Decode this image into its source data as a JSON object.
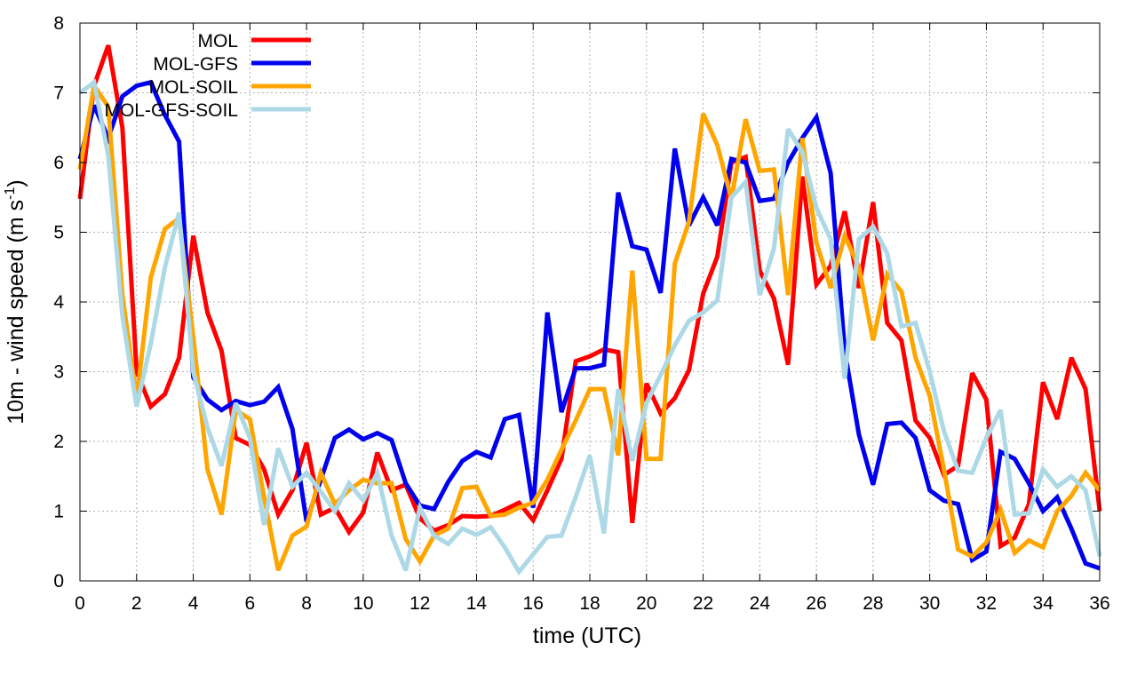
{
  "chart_data": {
    "type": "line",
    "xlabel": "time (UTC)",
    "ylabel": "10m - wind speed  (m s",
    "ylabel_sup": "-1",
    "ylabel_close": ")",
    "xlim": [
      0,
      36
    ],
    "ylim": [
      0,
      8
    ],
    "xticks": [
      "0",
      "2",
      "4",
      "6",
      "8",
      "10",
      "12",
      "14",
      "16",
      "18",
      "20",
      "22",
      "24",
      "26",
      "28",
      "30",
      "32",
      "34",
      "36"
    ],
    "yticks": [
      "0",
      "1",
      "2",
      "3",
      "4",
      "5",
      "6",
      "7",
      "8"
    ],
    "grid": true,
    "legend_position": "top-left",
    "x": [
      0,
      0.5,
      1,
      1.5,
      2,
      2.5,
      3,
      3.5,
      4,
      4.5,
      5,
      5.5,
      6,
      6.5,
      7,
      7.5,
      8,
      8.5,
      9,
      9.5,
      10,
      10.5,
      11,
      11.5,
      12,
      12.5,
      13,
      13.5,
      14,
      14.5,
      15,
      15.5,
      16,
      16.5,
      17,
      17.5,
      18,
      18.5,
      19,
      19.5,
      20,
      20.5,
      21,
      21.5,
      22,
      22.5,
      23,
      23.5,
      24,
      24.5,
      25,
      25.5,
      26,
      26.5,
      27,
      27.5,
      28,
      28.5,
      29,
      29.5,
      30,
      30.5,
      31,
      31.5,
      32,
      32.5,
      33,
      33.5,
      34,
      34.5,
      35,
      35.5,
      36
    ],
    "series": [
      {
        "name": "MOL",
        "color": "#ff0000",
        "values": [
          5.48,
          7.1,
          7.68,
          6.5,
          3.0,
          2.5,
          2.68,
          3.2,
          4.95,
          3.85,
          3.3,
          2.05,
          1.95,
          1.6,
          0.95,
          1.3,
          1.98,
          0.95,
          1.05,
          0.7,
          0.98,
          1.84,
          1.3,
          1.38,
          0.9,
          0.72,
          0.8,
          0.93,
          0.92,
          0.93,
          1.02,
          1.12,
          0.87,
          1.3,
          1.75,
          3.15,
          3.22,
          3.32,
          3.28,
          0.83,
          2.83,
          2.4,
          2.62,
          3.02,
          4.12,
          4.65,
          6.0,
          6.08,
          4.45,
          4.05,
          3.1,
          5.8,
          4.25,
          4.52,
          5.3,
          4.2,
          5.43,
          3.7,
          3.45,
          2.3,
          2.05,
          1.52,
          1.65,
          2.98,
          2.6,
          0.5,
          0.62,
          1.1,
          2.85,
          2.32,
          3.2,
          2.75,
          1.0
        ]
      },
      {
        "name": "MOL-GFS",
        "color": "#0000ee",
        "values": [
          6.05,
          6.82,
          6.35,
          6.95,
          7.1,
          7.15,
          6.68,
          6.3,
          2.92,
          2.6,
          2.45,
          2.58,
          2.52,
          2.57,
          2.78,
          2.18,
          0.85,
          1.45,
          2.05,
          2.17,
          2.03,
          2.12,
          2.02,
          1.4,
          1.08,
          1.03,
          1.42,
          1.72,
          1.85,
          1.77,
          2.32,
          2.38,
          1.05,
          3.85,
          2.42,
          3.05,
          3.05,
          3.1,
          5.57,
          4.8,
          4.75,
          4.13,
          6.2,
          5.1,
          5.5,
          5.1,
          6.05,
          6.0,
          5.45,
          5.48,
          6.0,
          6.35,
          6.65,
          5.85,
          3.3,
          2.1,
          1.38,
          2.25,
          2.27,
          2.05,
          1.3,
          1.15,
          1.1,
          0.3,
          0.42,
          1.85,
          1.75,
          1.4,
          1.0,
          1.2,
          0.75,
          0.25,
          0.18
        ]
      },
      {
        "name": "MOL-SOIL",
        "color": "#ffa500",
        "values": [
          5.9,
          7.1,
          6.8,
          4.1,
          2.6,
          4.35,
          5.05,
          5.2,
          3.5,
          1.6,
          0.95,
          2.45,
          2.32,
          1.2,
          0.15,
          0.65,
          0.78,
          1.55,
          1.1,
          1.3,
          1.45,
          1.4,
          1.4,
          0.6,
          0.28,
          0.65,
          0.75,
          1.33,
          1.35,
          0.93,
          0.95,
          1.05,
          1.12,
          1.45,
          1.88,
          2.3,
          2.75,
          2.75,
          1.8,
          4.45,
          1.75,
          1.75,
          4.55,
          5.15,
          6.7,
          6.25,
          5.48,
          6.62,
          5.88,
          5.9,
          4.1,
          6.35,
          4.85,
          4.2,
          4.95,
          4.5,
          3.45,
          4.4,
          4.15,
          3.2,
          2.65,
          1.6,
          0.45,
          0.35,
          0.55,
          1.02,
          0.4,
          0.58,
          0.48,
          1.0,
          1.22,
          1.55,
          1.3
        ]
      },
      {
        "name": "MOL-GFS-SOIL",
        "color": "#add8e6",
        "values": [
          7.0,
          7.15,
          6.1,
          3.8,
          2.5,
          3.4,
          4.5,
          5.28,
          3.0,
          2.2,
          1.65,
          2.55,
          2.05,
          0.8,
          1.9,
          1.35,
          1.55,
          1.28,
          1.0,
          1.4,
          1.15,
          1.55,
          0.65,
          0.15,
          1.05,
          0.65,
          0.53,
          0.75,
          0.66,
          0.77,
          0.48,
          0.13,
          0.38,
          0.63,
          0.65,
          1.2,
          1.8,
          0.68,
          2.75,
          1.72,
          2.55,
          2.95,
          3.38,
          3.73,
          3.85,
          4.02,
          5.5,
          5.72,
          4.1,
          4.77,
          6.48,
          6.15,
          5.35,
          4.9,
          2.9,
          4.9,
          5.08,
          4.7,
          3.65,
          3.7,
          3.0,
          2.15,
          1.58,
          1.55,
          2.05,
          2.45,
          0.95,
          0.97,
          1.6,
          1.35,
          1.5,
          1.3,
          0.35
        ]
      }
    ]
  }
}
